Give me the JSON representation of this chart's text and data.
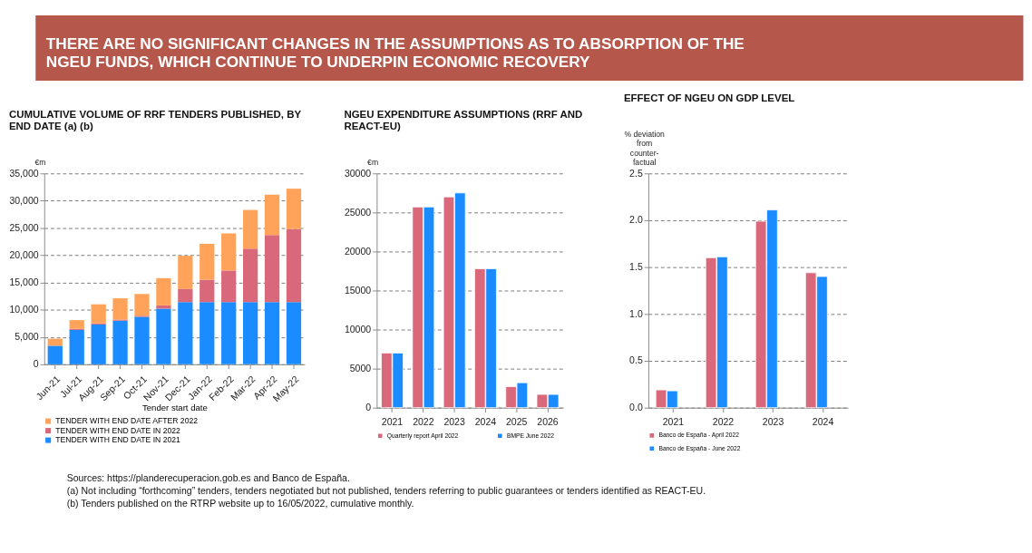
{
  "chart_data": [
    {
      "type": "bar",
      "title": "CUMULATIVE VOLUME OF RRF TENDERS PUBLISHED, BY END DATE (a) (b)",
      "ylabel": "€m",
      "xlabel": "Tender start date",
      "stacked": true,
      "grid": "y",
      "legend": "bottom",
      "annotations": [
        "THERE ARE NO SIGNIFICANT CHANGES IN THE ASSUMPTIONS AS TO ABSORPTION OF THE NGEU FUNDS, WHICH CONTINUE TO UNDERPIN ECONOMIC RECOVERY",
        "Sources: https://planderecuperacion.gob.es and Banco de España.",
        "(a) Not including “forthcoming” tenders, tenders negotiated but not published, tenders referring to public guarantees or tenders identified as REACT-EU.",
        "(b) Tenders published on the RTRP website up to 16/05/2022, cumulative monthly."
      ],
      "categories": [
        "Jun-21",
        "Jul-21",
        "Aug-21",
        "Sep-21",
        "Oct-21",
        "Nov-21",
        "Dec-21",
        "Jan-22",
        "Feb-22",
        "Mar-22",
        "Apr-22",
        "May-22"
      ],
      "ylim": [
        0,
        35000
      ],
      "yticks": [
        0,
        {
          "value": 5000,
          "label": "5,000"
        },
        {
          "value": 10000,
          "label": "10,000"
        },
        {
          "value": 15000,
          "label": "15,000"
        },
        {
          "value": 20000,
          "label": "20,000"
        },
        {
          "value": 25000,
          "label": "25,000"
        },
        {
          "value": 30000,
          "label": "30,000"
        },
        {
          "value": 35000,
          "label": "35,000"
        }
      ],
      "series": [
        {
          "name": "TENDER WITH END DATE IN 2021",
          "color": "#1a8cff",
          "values": [
            3400,
            6300,
            7300,
            8000,
            8700,
            10200,
            11400,
            11400,
            11400,
            11400,
            11400,
            11400
          ]
        },
        {
          "name": "TENDER WITH END DATE IN 2022",
          "color": "#d9697a",
          "values": [
            0,
            200,
            200,
            200,
            200,
            600,
            2400,
            4100,
            5800,
            9800,
            12300,
            13400
          ]
        },
        {
          "name": "TENDER WITH END DATE AFTER 2022",
          "color": "#ffa35a",
          "values": [
            1300,
            1600,
            3500,
            3900,
            4000,
            5000,
            6100,
            6600,
            6800,
            7100,
            7400,
            7400
          ]
        }
      ]
    },
    {
      "type": "bar",
      "title": "NGEU EXPENDITURE ASSUMPTIONS (RRF AND REACT-EU)",
      "ylabel": "€m",
      "grid": "y",
      "legend": "bottom",
      "categories": [
        "2021",
        "2022",
        "2023",
        "2024",
        "2025",
        "2026"
      ],
      "ylim": [
        0,
        30000
      ],
      "yticks": [
        0,
        5000,
        10000,
        15000,
        20000,
        25000,
        30000
      ],
      "series": [
        {
          "name": "Quarterly report April 2022",
          "color": "#d9697a",
          "values": [
            7000,
            25700,
            27000,
            17800,
            2700,
            1700
          ]
        },
        {
          "name": "BMPE June 2022",
          "color": "#1a8cff",
          "values": [
            7000,
            25700,
            27500,
            17800,
            3200,
            1700
          ]
        }
      ]
    },
    {
      "type": "bar",
      "title": "EFFECT OF NGEU ON GDP LEVEL",
      "ylabel": "% deviation\nfrom\ncounter-\nfactual",
      "grid": "y",
      "legend": "bottom",
      "categories": [
        "2021",
        "2022",
        "2023",
        "2024"
      ],
      "ylim": [
        0,
        2.5
      ],
      "yticks": [
        {
          "value": 0,
          "label": "0.0"
        },
        0.5,
        {
          "value": 1,
          "label": "1.0"
        },
        1.5,
        {
          "value": 2,
          "label": "2.0"
        },
        2.5
      ],
      "series": [
        {
          "name": "Banco de España - April 2022",
          "color": "#d9697a",
          "values": [
            0.19,
            1.6,
            1.99,
            1.44
          ]
        },
        {
          "name": "Banco de España - June 2022",
          "color": "#1a8cff",
          "values": [
            0.18,
            1.61,
            2.11,
            1.4
          ]
        }
      ]
    }
  ]
}
